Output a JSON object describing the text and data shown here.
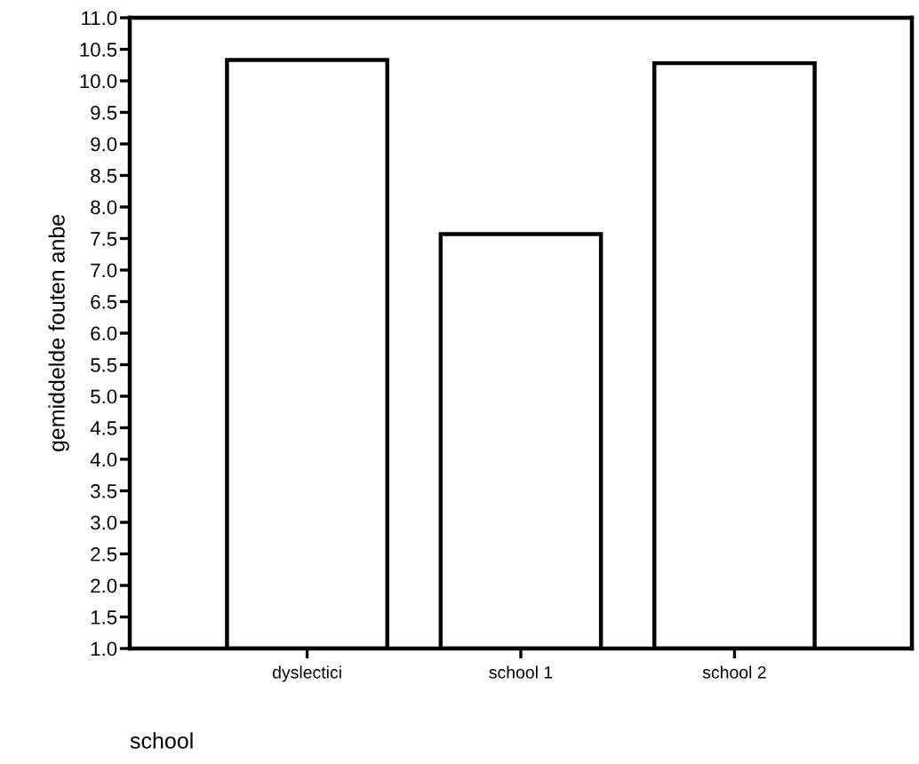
{
  "chart_data": {
    "type": "bar",
    "xlabel": "school",
    "ylabel": "gemiddelde fouten anbe",
    "categories": [
      "dyslectici",
      "school 1",
      "school 2"
    ],
    "values": [
      10.33,
      7.57,
      10.28
    ],
    "color": "#ffffff",
    "ylim": [
      1,
      11
    ],
    "yticks": [
      {
        "value": 1,
        "label": "1.0"
      },
      1.5,
      {
        "value": 2,
        "label": "2.0"
      },
      2.5,
      {
        "value": 3,
        "label": "3.0"
      },
      3.5,
      {
        "value": 4,
        "label": "4.0"
      },
      4.5,
      {
        "value": 5,
        "label": "5.0"
      },
      5.5,
      {
        "value": 6,
        "label": "6.0"
      },
      6.5,
      {
        "value": 7,
        "label": "7.0"
      },
      7.5,
      {
        "value": 8,
        "label": "8.0"
      },
      8.5,
      {
        "value": 9,
        "label": "9.0"
      },
      9.5,
      {
        "value": 10,
        "label": "10.0"
      },
      10.5,
      {
        "value": 11,
        "label": "11.0"
      }
    ],
    "grid": false,
    "legend": false
  }
}
